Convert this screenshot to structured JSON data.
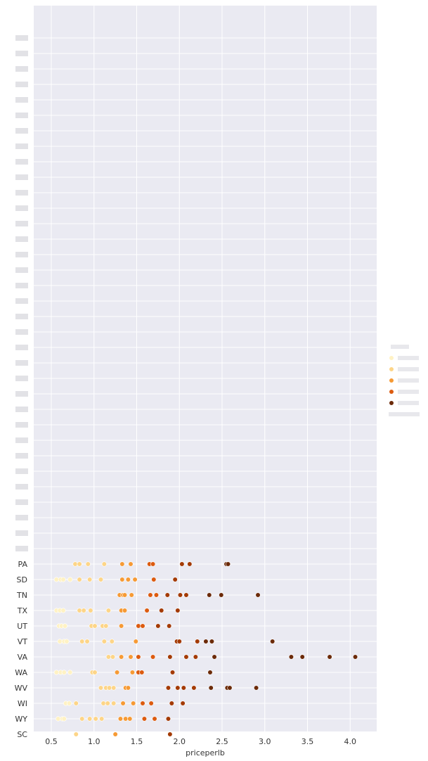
{
  "chart_data": {
    "type": "scatter",
    "title": "",
    "xlabel": "priceperlb",
    "ylabel": "",
    "xlim": [
      0.3,
      4.35
    ],
    "xticks": [
      0.5,
      1.0,
      1.5,
      2.0,
      2.5,
      3.0,
      3.5,
      4.0
    ],
    "xtick_labels": [
      "0.5",
      "1.0",
      "1.5",
      "2.0",
      "2.5",
      "3.0",
      "3.5",
      "4.0"
    ],
    "grid": true,
    "background": "#eaeaf2",
    "legend_position": "right",
    "categories": [
      "PA",
      "SD",
      "TN",
      "TX",
      "UT",
      "VT",
      "VA",
      "WA",
      "WV",
      "WI",
      "WY",
      "SC"
    ],
    "palette": [
      "#fff2c4",
      "#fdd588",
      "#f69a35",
      "#dc5b10",
      "#a33a05",
      "#6b2a09"
    ],
    "points": [
      {
        "cat": "PA",
        "x": [
          0.78,
          0.83,
          0.93,
          1.12,
          1.33,
          1.43,
          1.65,
          1.69,
          2.03,
          2.12,
          2.55,
          2.57
        ]
      },
      {
        "cat": "SD",
        "x": [
          0.56,
          0.61,
          0.64,
          0.72,
          0.83,
          0.95,
          1.08,
          1.33,
          1.4,
          1.48,
          1.7,
          1.95
        ]
      },
      {
        "cat": "TN",
        "x": [
          1.3,
          1.34,
          1.36,
          1.44,
          1.66,
          1.73,
          1.86,
          2.01,
          2.08,
          2.35,
          2.49,
          2.92
        ]
      },
      {
        "cat": "TX",
        "x": [
          0.56,
          0.6,
          0.64,
          0.83,
          0.88,
          0.96,
          1.17,
          1.32,
          1.36,
          1.62,
          1.79,
          1.98
        ]
      },
      {
        "cat": "UT",
        "x": [
          0.59,
          0.62,
          0.66,
          0.97,
          1.01,
          1.1,
          1.14,
          1.32,
          1.52,
          1.57,
          1.75,
          1.88
        ]
      },
      {
        "cat": "VT",
        "x": [
          0.6,
          0.65,
          0.68,
          0.86,
          0.92,
          1.12,
          1.21,
          1.49,
          1.97,
          2.0,
          2.21,
          2.31,
          2.38,
          3.09
        ]
      },
      {
        "cat": "VA",
        "x": [
          1.17,
          1.22,
          1.32,
          1.43,
          1.52,
          1.69,
          1.89,
          2.08,
          2.19,
          2.41,
          3.31,
          3.44,
          3.76,
          4.06
        ]
      },
      {
        "cat": "WA",
        "x": [
          0.56,
          0.61,
          0.65,
          0.72,
          0.98,
          1.01,
          1.27,
          1.45,
          1.52,
          1.56,
          1.92,
          2.36
        ]
      },
      {
        "cat": "WV",
        "x": [
          1.08,
          1.14,
          1.18,
          1.23,
          1.37,
          1.4,
          1.87,
          1.98,
          2.05,
          2.17,
          2.37,
          2.56,
          2.59,
          2.9
        ]
      },
      {
        "cat": "WI",
        "x": [
          0.67,
          0.71,
          0.79,
          1.11,
          1.16,
          1.23,
          1.34,
          1.46,
          1.57,
          1.67,
          1.91,
          2.04
        ]
      },
      {
        "cat": "WY",
        "x": [
          0.58,
          0.63,
          0.65,
          0.86,
          0.95,
          1.02,
          1.09,
          1.31,
          1.37,
          1.42,
          1.59,
          1.71,
          1.87
        ]
      },
      {
        "cat": "SC",
        "x": [
          0.79,
          1.25,
          1.89
        ]
      }
    ]
  }
}
